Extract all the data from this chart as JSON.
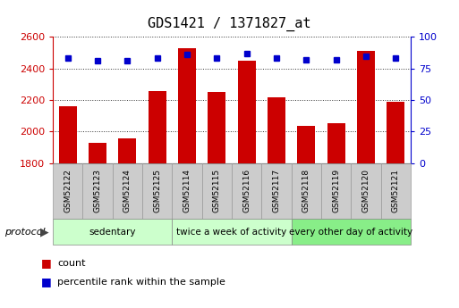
{
  "title": "GDS1421 / 1371827_at",
  "categories": [
    "GSM52122",
    "GSM52123",
    "GSM52124",
    "GSM52125",
    "GSM52114",
    "GSM52115",
    "GSM52116",
    "GSM52117",
    "GSM52118",
    "GSM52119",
    "GSM52120",
    "GSM52121"
  ],
  "count_values": [
    2160,
    1930,
    1960,
    2260,
    2530,
    2250,
    2450,
    2220,
    2035,
    2055,
    2510,
    2190
  ],
  "percentile_values": [
    83,
    81,
    81,
    83,
    86,
    83,
    87,
    83,
    82,
    82,
    85,
    83
  ],
  "ylim_left": [
    1800,
    2600
  ],
  "ylim_right": [
    0,
    100
  ],
  "yticks_left": [
    1800,
    2000,
    2200,
    2400,
    2600
  ],
  "yticks_right": [
    0,
    25,
    50,
    75,
    100
  ],
  "bar_color": "#cc0000",
  "dot_color": "#0000cc",
  "groups": [
    {
      "label": "sedentary",
      "start": 0,
      "end": 4,
      "color": "#ccffcc"
    },
    {
      "label": "twice a week of activity",
      "start": 4,
      "end": 8,
      "color": "#ccffcc"
    },
    {
      "label": "every other day of activity",
      "start": 8,
      "end": 12,
      "color": "#88ee88"
    }
  ],
  "protocol_label": "protocol",
  "legend_count_label": "count",
  "legend_percentile_label": "percentile rank within the sample",
  "title_fontsize": 11,
  "axis_label_color_left": "#cc0000",
  "axis_label_color_right": "#0000cc",
  "background_color": "#ffffff",
  "plot_bg_color": "#ffffff",
  "tick_label_bg_color": "#cccccc",
  "grid_color": "#000000",
  "spine_color": "#000000"
}
